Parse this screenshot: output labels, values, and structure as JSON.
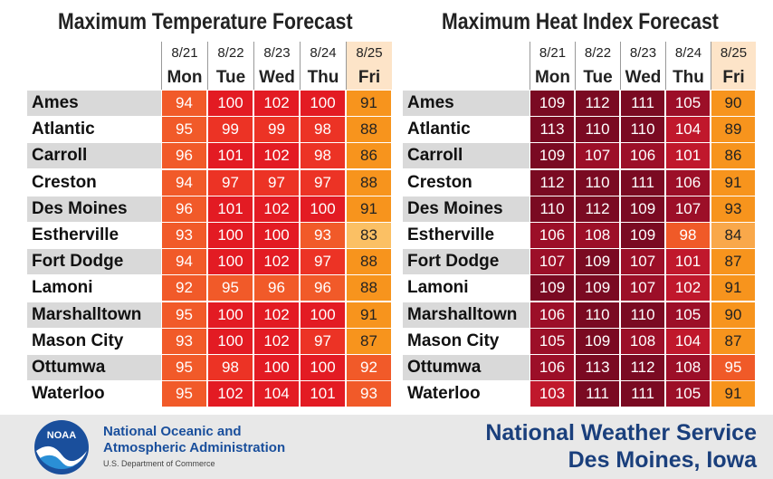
{
  "tables": [
    {
      "title": "Maximum Temperature Forecast",
      "dates": [
        "8/21",
        "8/22",
        "8/23",
        "8/24",
        "8/25"
      ],
      "days": [
        "Mon",
        "Tue",
        "Wed",
        "Thu",
        "Fri"
      ],
      "rows": [
        {
          "city": "Ames",
          "values": [
            94,
            100,
            102,
            100,
            91
          ]
        },
        {
          "city": "Atlantic",
          "values": [
            95,
            99,
            99,
            98,
            88
          ]
        },
        {
          "city": "Carroll",
          "values": [
            96,
            101,
            102,
            98,
            86
          ]
        },
        {
          "city": "Creston",
          "values": [
            94,
            97,
            97,
            97,
            88
          ]
        },
        {
          "city": "Des Moines",
          "values": [
            96,
            101,
            102,
            100,
            91
          ]
        },
        {
          "city": "Estherville",
          "values": [
            93,
            100,
            100,
            93,
            83
          ]
        },
        {
          "city": "Fort Dodge",
          "values": [
            94,
            100,
            102,
            97,
            88
          ]
        },
        {
          "city": "Lamoni",
          "values": [
            92,
            95,
            96,
            96,
            88
          ]
        },
        {
          "city": "Marshalltown",
          "values": [
            95,
            100,
            102,
            100,
            91
          ]
        },
        {
          "city": "Mason City",
          "values": [
            93,
            100,
            102,
            97,
            87
          ]
        },
        {
          "city": "Ottumwa",
          "values": [
            95,
            98,
            100,
            100,
            92
          ]
        },
        {
          "city": "Waterloo",
          "values": [
            95,
            102,
            104,
            101,
            93
          ]
        }
      ]
    },
    {
      "title": "Maximum Heat Index Forecast",
      "dates": [
        "8/21",
        "8/22",
        "8/23",
        "8/24",
        "8/25"
      ],
      "days": [
        "Mon",
        "Tue",
        "Wed",
        "Thu",
        "Fri"
      ],
      "rows": [
        {
          "city": "Ames",
          "values": [
            109,
            112,
            111,
            105,
            90
          ]
        },
        {
          "city": "Atlantic",
          "values": [
            113,
            110,
            110,
            104,
            89
          ]
        },
        {
          "city": "Carroll",
          "values": [
            109,
            107,
            106,
            101,
            86
          ]
        },
        {
          "city": "Creston",
          "values": [
            112,
            110,
            111,
            106,
            91
          ]
        },
        {
          "city": "Des Moines",
          "values": [
            110,
            112,
            109,
            107,
            93
          ]
        },
        {
          "city": "Estherville",
          "values": [
            106,
            108,
            109,
            98,
            84
          ]
        },
        {
          "city": "Fort Dodge",
          "values": [
            107,
            109,
            107,
            101,
            87
          ]
        },
        {
          "city": "Lamoni",
          "values": [
            109,
            109,
            107,
            102,
            91
          ]
        },
        {
          "city": "Marshalltown",
          "values": [
            106,
            110,
            110,
            105,
            90
          ]
        },
        {
          "city": "Mason City",
          "values": [
            105,
            109,
            108,
            104,
            87
          ]
        },
        {
          "city": "Ottumwa",
          "values": [
            106,
            113,
            112,
            108,
            95
          ]
        },
        {
          "city": "Waterloo",
          "values": [
            103,
            111,
            111,
            105,
            91
          ]
        }
      ]
    }
  ],
  "footer": {
    "logo": "NOAA",
    "agency_line1": "National Oceanic and",
    "agency_line2": "Atmospheric Administration",
    "department": "U.S. Department of Commerce",
    "office": "National Weather Service",
    "location": "Des Moines, Iowa"
  }
}
